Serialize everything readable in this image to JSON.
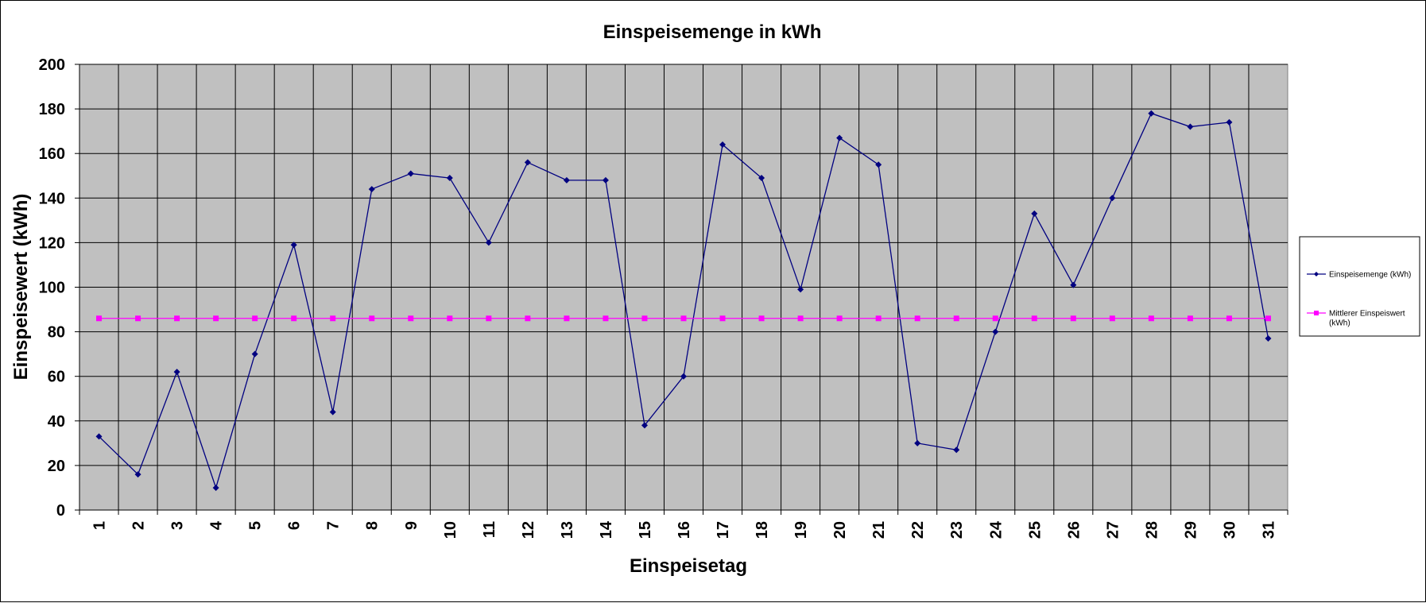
{
  "chart_data": {
    "type": "line",
    "title": "Einspeisemenge in kWh",
    "xlabel": "Einspeisetag",
    "ylabel": "Einspeisewert  (kWh)",
    "categories": [
      "1",
      "2",
      "3",
      "4",
      "5",
      "6",
      "7",
      "8",
      "9",
      "10",
      "11",
      "12",
      "13",
      "14",
      "15",
      "16",
      "17",
      "18",
      "19",
      "20",
      "21",
      "22",
      "23",
      "24",
      "25",
      "26",
      "27",
      "28",
      "29",
      "30",
      "31"
    ],
    "ylim": [
      0,
      200
    ],
    "yticks": [
      0,
      20,
      40,
      60,
      80,
      100,
      120,
      140,
      160,
      180,
      200
    ],
    "grid": true,
    "legend_position": "right",
    "plot_background": "#c0c0c0",
    "series": [
      {
        "name": "Einspeisemenge (kWh)",
        "color": "#000080",
        "marker": "diamond",
        "values": [
          33,
          16,
          62,
          10,
          70,
          119,
          44,
          144,
          151,
          149,
          120,
          156,
          148,
          148,
          38,
          60,
          164,
          149,
          99,
          167,
          155,
          30,
          27,
          80,
          133,
          101,
          140,
          178,
          172,
          174,
          77
        ]
      },
      {
        "name": "Mittlerer Einspeiswert (kWh)",
        "color": "#ff00ff",
        "marker": "square",
        "values": [
          86,
          86,
          86,
          86,
          86,
          86,
          86,
          86,
          86,
          86,
          86,
          86,
          86,
          86,
          86,
          86,
          86,
          86,
          86,
          86,
          86,
          86,
          86,
          86,
          86,
          86,
          86,
          86,
          86,
          86,
          86
        ]
      }
    ]
  }
}
